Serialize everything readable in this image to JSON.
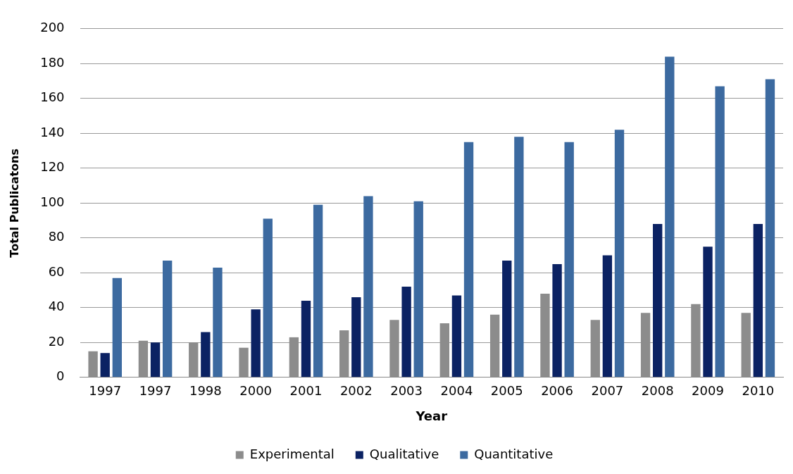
{
  "chart_data": {
    "type": "bar",
    "xlabel": "Year",
    "ylabel": "Total Publicatons",
    "categories": [
      "1997",
      "1997",
      "1998",
      "2000",
      "2001",
      "2002",
      "2003",
      "2004",
      "2005",
      "2006",
      "2007",
      "2008",
      "2009",
      "2010"
    ],
    "series": [
      {
        "name": "Experimental",
        "color": "#8c8c8c",
        "values": [
          15,
          21,
          20,
          17,
          23,
          27,
          33,
          31,
          36,
          48,
          33,
          37,
          42,
          37
        ]
      },
      {
        "name": "Qualitative",
        "color": "#0b2263",
        "values": [
          14,
          20,
          26,
          39,
          44,
          46,
          52,
          47,
          67,
          65,
          70,
          88,
          75,
          88
        ]
      },
      {
        "name": "Quantitative",
        "color": "#3c6aa0",
        "values": [
          57,
          67,
          63,
          91,
          99,
          104,
          101,
          135,
          138,
          135,
          142,
          184,
          167,
          171
        ]
      }
    ],
    "ylim": [
      0,
      200
    ],
    "yticks": [
      0,
      20,
      40,
      60,
      80,
      100,
      120,
      140,
      160,
      180,
      200
    ],
    "grid": "y",
    "legend": "bottom"
  }
}
